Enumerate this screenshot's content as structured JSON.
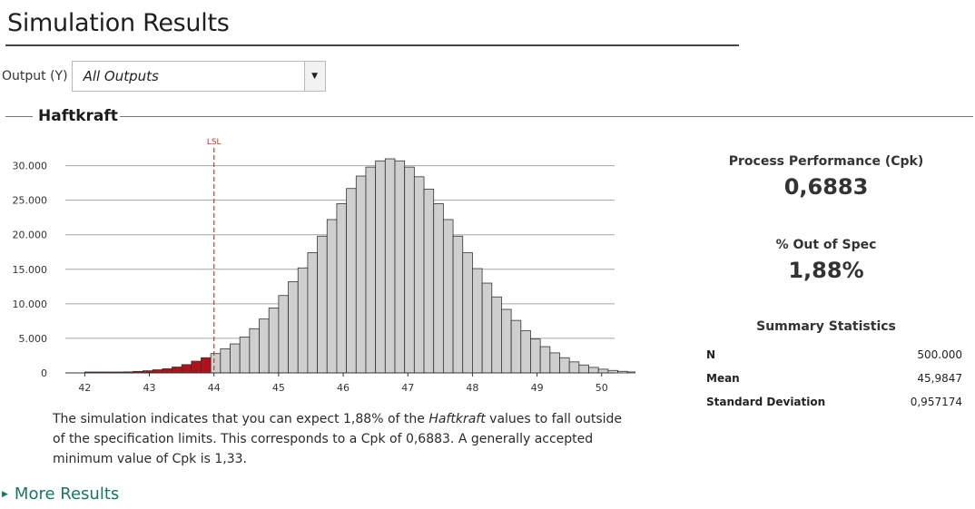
{
  "page": {
    "title": "Simulation Results"
  },
  "output_selector": {
    "label": "Output (Y)",
    "value": "All Outputs"
  },
  "section": {
    "title": "Haftkraft"
  },
  "chart_data": {
    "type": "bar",
    "spec_limit_label": "LSL",
    "lsl": 44,
    "x_ticks": [
      "42",
      "43",
      "44",
      "45",
      "46",
      "47",
      "48",
      "49",
      "50"
    ],
    "y_ticks": [
      "0",
      "5.000",
      "10.000",
      "15.000",
      "20.000",
      "25.000",
      "30.000"
    ],
    "xlim": [
      41.7,
      50.2
    ],
    "ylim": [
      0,
      31000
    ],
    "bin_width": 0.15,
    "bins_start": 41.7,
    "values": [
      0,
      0,
      30,
      50,
      80,
      110,
      150,
      220,
      310,
      450,
      600,
      850,
      1200,
      1700,
      2200,
      2800,
      3500,
      4200,
      5200,
      6400,
      7800,
      9400,
      11200,
      13200,
      15200,
      17400,
      19800,
      22200,
      24500,
      26700,
      28500,
      29800,
      30700,
      31000,
      30700,
      29800,
      28400,
      26600,
      24500,
      22200,
      19800,
      17400,
      15100,
      13000,
      11000,
      9200,
      7600,
      6100,
      4900,
      3800,
      2900,
      2200,
      1600,
      1150,
      800,
      540,
      360,
      230,
      140,
      80,
      40,
      10
    ],
    "colors": {
      "out_of_spec": "#b01219",
      "in_spec": "#cfcfcf",
      "lsl_line": "#c0392b"
    }
  },
  "description": {
    "part1": "The simulation indicates that you can expect 1,88% of the ",
    "italic": "Haftkraft",
    "part2": " values to fall outside of the specification limits. This corresponds to a Cpk of 0,6883. A generally accepted minimum value of Cpk is 1,33."
  },
  "more_results": {
    "label": "More Results"
  },
  "metrics": {
    "cpk_title": "Process Performance (Cpk)",
    "cpk_value": "0,6883",
    "oos_title": "% Out of Spec",
    "oos_value": "1,88%"
  },
  "summary": {
    "title": "Summary Statistics",
    "rows": [
      {
        "key": "N",
        "value": "500.000"
      },
      {
        "key": "Mean",
        "value": "45,9847"
      },
      {
        "key": "Standard Deviation",
        "value": "0,957174"
      }
    ]
  }
}
